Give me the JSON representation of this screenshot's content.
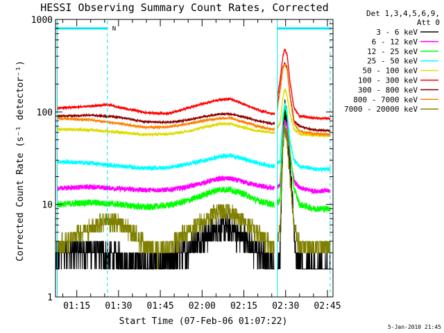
{
  "chart_data": {
    "type": "line",
    "title": "HESSI Observing Summary Count Rates, Corrected",
    "xlabel": "Start Time (07-Feb-06 01:07:22)",
    "ylabel": "Corrected Count Rate (s⁻¹ detector⁻¹)",
    "xaxis": {
      "unit": "time",
      "range": [
        "01:07:22",
        "02:47:00"
      ],
      "ticks": [
        "01:15",
        "01:30",
        "01:45",
        "02:00",
        "02:15",
        "02:30",
        "02:45"
      ]
    },
    "yaxis": {
      "scale": "log",
      "range": [
        1,
        1000
      ],
      "ticks": [
        {
          "value": 1,
          "label": "1"
        },
        {
          "value": 10,
          "label": "10"
        },
        {
          "value": 100,
          "label": "100"
        },
        {
          "value": 1000,
          "label": "1000"
        }
      ]
    },
    "legend": {
      "placement": "right",
      "header": [
        "Det 1,3,4,5,6,9,",
        "Att 0"
      ]
    },
    "annotations": {
      "night_label": "N",
      "night_bars": [
        [
          "01:07:22",
          "01:26:00"
        ],
        [
          "02:27:00",
          "02:46:00"
        ]
      ],
      "night_marks": [
        "01:26:00",
        "02:46:00"
      ],
      "gap": [
        "01:07:22",
        "01:08:00"
      ],
      "gap2": [
        "02:26:00",
        "02:27:00"
      ]
    },
    "series": [
      {
        "name": "3 - 6 keV",
        "color": "#000000",
        "noise": 0.35,
        "quantized": true,
        "points": [
          [
            "01:07:22",
            2
          ],
          [
            "01:08:00",
            3
          ],
          [
            "01:20:00",
            3.2
          ],
          [
            "01:30:00",
            2.6
          ],
          [
            "01:40:00",
            2.3
          ],
          [
            "01:48:00",
            2.4
          ],
          [
            "01:55:00",
            3.3
          ],
          [
            "02:00:00",
            4.3
          ],
          [
            "02:06:00",
            5.5
          ],
          [
            "02:10:00",
            5.5
          ],
          [
            "02:15:00",
            4.2
          ],
          [
            "02:20:00",
            3.0
          ],
          [
            "02:25:00",
            2.3
          ],
          [
            "02:26:00",
            2.3
          ],
          [
            "02:27:00",
            2.0
          ],
          [
            "02:28:00",
            3.0
          ],
          [
            "02:29:00",
            60
          ],
          [
            "02:29:40",
            105
          ],
          [
            "02:30:30",
            80
          ],
          [
            "02:31:30",
            30
          ],
          [
            "02:33:00",
            6
          ],
          [
            "02:34:00",
            2.2
          ],
          [
            "02:40:00",
            2.0
          ],
          [
            "02:46:00",
            2.0
          ]
        ]
      },
      {
        "name": "6 - 12 keV",
        "color": "#ff00ff",
        "noise": 0.06,
        "points": [
          [
            "01:08:00",
            15
          ],
          [
            "01:20:00",
            15.5
          ],
          [
            "01:30:00",
            14.8
          ],
          [
            "01:40:00",
            14.3
          ],
          [
            "01:48:00",
            14.4
          ],
          [
            "01:55:00",
            15.5
          ],
          [
            "02:00:00",
            17
          ],
          [
            "02:06:00",
            19
          ],
          [
            "02:10:00",
            19
          ],
          [
            "02:15:00",
            17.5
          ],
          [
            "02:20:00",
            16
          ],
          [
            "02:25:00",
            15
          ],
          [
            "02:26:00",
            15
          ],
          [
            "02:28:00",
            16
          ],
          [
            "02:29:00",
            60
          ],
          [
            "02:29:40",
            82
          ],
          [
            "02:30:30",
            70
          ],
          [
            "02:31:30",
            35
          ],
          [
            "02:33:00",
            18
          ],
          [
            "02:35:00",
            15
          ],
          [
            "02:40:00",
            14
          ],
          [
            "02:46:00",
            14
          ]
        ]
      },
      {
        "name": "12 - 25 keV",
        "color": "#00ff00",
        "noise": 0.08,
        "points": [
          [
            "01:08:00",
            10
          ],
          [
            "01:20:00",
            10.5
          ],
          [
            "01:30:00",
            10
          ],
          [
            "01:40:00",
            9.3
          ],
          [
            "01:48:00",
            9.8
          ],
          [
            "01:55:00",
            11
          ],
          [
            "02:00:00",
            12.5
          ],
          [
            "02:06:00",
            14.5
          ],
          [
            "02:10:00",
            14.5
          ],
          [
            "02:15:00",
            13
          ],
          [
            "02:20:00",
            11
          ],
          [
            "02:25:00",
            10
          ],
          [
            "02:26:00",
            10
          ],
          [
            "02:28:00",
            11
          ],
          [
            "02:29:00",
            80
          ],
          [
            "02:29:40",
            115
          ],
          [
            "02:30:30",
            95
          ],
          [
            "02:31:30",
            40
          ],
          [
            "02:33:00",
            15
          ],
          [
            "02:35:00",
            10
          ],
          [
            "02:40:00",
            9
          ],
          [
            "02:46:00",
            9
          ]
        ]
      },
      {
        "name": "25 - 50 keV",
        "color": "#00ffff",
        "noise": 0.05,
        "points": [
          [
            "01:08:00",
            29
          ],
          [
            "01:20:00",
            28
          ],
          [
            "01:30:00",
            26
          ],
          [
            "01:40:00",
            24.5
          ],
          [
            "01:48:00",
            25
          ],
          [
            "01:55:00",
            27.5
          ],
          [
            "02:00:00",
            29.5
          ],
          [
            "02:06:00",
            32.5
          ],
          [
            "02:10:00",
            34
          ],
          [
            "02:15:00",
            31
          ],
          [
            "02:20:00",
            28
          ],
          [
            "02:25:00",
            26
          ],
          [
            "02:26:00",
            26
          ],
          [
            "02:28:00",
            30
          ],
          [
            "02:29:00",
            90
          ],
          [
            "02:29:40",
            120
          ],
          [
            "02:30:30",
            100
          ],
          [
            "02:31:30",
            50
          ],
          [
            "02:33:00",
            30
          ],
          [
            "02:35:00",
            26
          ],
          [
            "02:40:00",
            24
          ],
          [
            "02:46:00",
            24
          ]
        ]
      },
      {
        "name": "50 - 100 keV",
        "color": "#dddd00",
        "noise": 0.03,
        "points": [
          [
            "01:08:00",
            65
          ],
          [
            "01:20:00",
            64
          ],
          [
            "01:30:00",
            60
          ],
          [
            "01:40:00",
            57
          ],
          [
            "01:48:00",
            57.5
          ],
          [
            "01:55:00",
            62
          ],
          [
            "02:00:00",
            68
          ],
          [
            "02:06:00",
            74
          ],
          [
            "02:10:00",
            75
          ],
          [
            "02:15:00",
            68
          ],
          [
            "02:20:00",
            62
          ],
          [
            "02:25:00",
            60
          ],
          [
            "02:26:00",
            60
          ],
          [
            "02:28:00",
            75
          ],
          [
            "02:29:00",
            140
          ],
          [
            "02:29:40",
            180
          ],
          [
            "02:30:30",
            150
          ],
          [
            "02:31:30",
            95
          ],
          [
            "02:33:00",
            65
          ],
          [
            "02:35:00",
            58
          ],
          [
            "02:40:00",
            56
          ],
          [
            "02:46:00",
            55
          ]
        ]
      },
      {
        "name": "100 - 300 keV",
        "color": "#ff0000",
        "noise": 0.025,
        "points": [
          [
            "01:08:00",
            110
          ],
          [
            "01:20:00",
            115
          ],
          [
            "01:26:00",
            120
          ],
          [
            "01:30:00",
            112
          ],
          [
            "01:40:00",
            98
          ],
          [
            "01:48:00",
            96
          ],
          [
            "01:55:00",
            110
          ],
          [
            "02:00:00",
            122
          ],
          [
            "02:06:00",
            135
          ],
          [
            "02:10:00",
            138
          ],
          [
            "02:15:00",
            122
          ],
          [
            "02:20:00",
            105
          ],
          [
            "02:25:00",
            96
          ],
          [
            "02:26:00",
            96
          ],
          [
            "02:28:00",
            220
          ],
          [
            "02:29:00",
            400
          ],
          [
            "02:29:40",
            480
          ],
          [
            "02:30:30",
            420
          ],
          [
            "02:31:30",
            220
          ],
          [
            "02:33:00",
            110
          ],
          [
            "02:35:00",
            90
          ],
          [
            "02:40:00",
            86
          ],
          [
            "02:46:00",
            85
          ]
        ]
      },
      {
        "name": "300 - 800 keV",
        "color": "#8b0000",
        "noise": 0.02,
        "points": [
          [
            "01:08:00",
            90
          ],
          [
            "01:20:00",
            92
          ],
          [
            "01:30:00",
            88
          ],
          [
            "01:40:00",
            78
          ],
          [
            "01:48:00",
            77
          ],
          [
            "01:55:00",
            82
          ],
          [
            "02:00:00",
            88
          ],
          [
            "02:06:00",
            95
          ],
          [
            "02:10:00",
            95
          ],
          [
            "02:15:00",
            88
          ],
          [
            "02:20:00",
            80
          ],
          [
            "02:25:00",
            75
          ],
          [
            "02:26:00",
            75
          ],
          [
            "02:28:00",
            180
          ],
          [
            "02:29:00",
            300
          ],
          [
            "02:29:40",
            340
          ],
          [
            "02:30:30",
            300
          ],
          [
            "02:31:30",
            160
          ],
          [
            "02:33:00",
            80
          ],
          [
            "02:35:00",
            70
          ],
          [
            "02:40:00",
            64
          ],
          [
            "02:46:00",
            63
          ]
        ]
      },
      {
        "name": "800 - 7000 keV",
        "color": "#ff8000",
        "noise": 0.025,
        "points": [
          [
            "01:08:00",
            85
          ],
          [
            "01:20:00",
            82
          ],
          [
            "01:30:00",
            75
          ],
          [
            "01:40:00",
            68
          ],
          [
            "01:48:00",
            69
          ],
          [
            "01:55:00",
            74
          ],
          [
            "02:00:00",
            80
          ],
          [
            "02:06:00",
            85
          ],
          [
            "02:10:00",
            86
          ],
          [
            "02:15:00",
            78
          ],
          [
            "02:20:00",
            70
          ],
          [
            "02:25:00",
            65
          ],
          [
            "02:26:00",
            65
          ],
          [
            "02:28:00",
            170
          ],
          [
            "02:29:00",
            290
          ],
          [
            "02:29:40",
            330
          ],
          [
            "02:30:30",
            290
          ],
          [
            "02:31:30",
            150
          ],
          [
            "02:33:00",
            75
          ],
          [
            "02:35:00",
            62
          ],
          [
            "02:40:00",
            58
          ],
          [
            "02:46:00",
            57
          ]
        ]
      },
      {
        "name": "7000 - 20000 keV",
        "color": "#808000",
        "noise": 0.22,
        "quantized": true,
        "points": [
          [
            "01:08:00",
            3.5
          ],
          [
            "01:20:00",
            5.5
          ],
          [
            "01:26:00",
            6.8
          ],
          [
            "01:30:00",
            6.2
          ],
          [
            "01:35:00",
            5.0
          ],
          [
            "01:40:00",
            3.5
          ],
          [
            "01:45:00",
            3.0
          ],
          [
            "01:50:00",
            3.8
          ],
          [
            "01:55:00",
            5.0
          ],
          [
            "02:00:00",
            6.5
          ],
          [
            "02:06:00",
            8.5
          ],
          [
            "02:10:00",
            8.3
          ],
          [
            "02:15:00",
            6.5
          ],
          [
            "02:20:00",
            4.8
          ],
          [
            "02:25:00",
            3.6
          ],
          [
            "02:26:00",
            3.5
          ],
          [
            "02:28:00",
            5.0
          ],
          [
            "02:29:00",
            40
          ],
          [
            "02:29:40",
            68
          ],
          [
            "02:30:30",
            50
          ],
          [
            "02:31:30",
            20
          ],
          [
            "02:33:00",
            6
          ],
          [
            "02:35:00",
            3.5
          ],
          [
            "02:40:00",
            3.4
          ],
          [
            "02:46:00",
            3.4
          ]
        ]
      }
    ]
  },
  "footer": {
    "date_stamp": "5-Jan-2010 21:45"
  }
}
